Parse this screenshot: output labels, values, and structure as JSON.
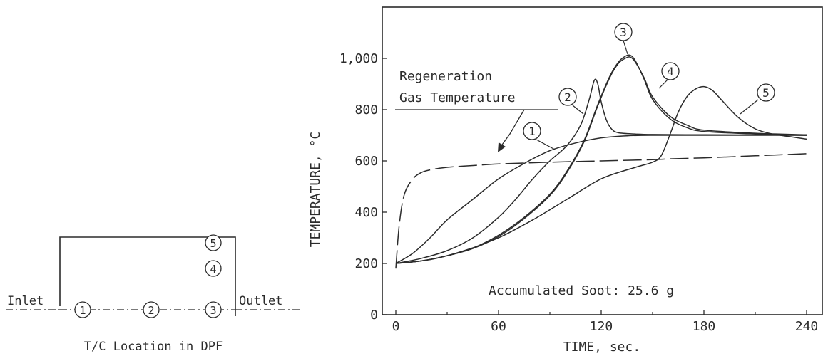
{
  "chart_data": {
    "type": "line",
    "xlabel": "TIME, sec.",
    "ylabel": "TEMPERATURE, °C",
    "xlim": [
      0,
      240
    ],
    "ylim": [
      0,
      1200
    ],
    "x_ticks": [
      0,
      60,
      120,
      180,
      240
    ],
    "x_tick_labels": [
      "0",
      "60",
      "120",
      "180",
      "240"
    ],
    "y_ticks": [
      0,
      200,
      400,
      600,
      800,
      1000
    ],
    "y_tick_labels": [
      "0",
      "200",
      "400",
      "600",
      "800",
      "1,000"
    ],
    "grid": false,
    "annotation_gas": [
      "Regeneration",
      "Gas Temperature"
    ],
    "annotation_soot": "Accumulated Soot:  25.6 g",
    "series": [
      {
        "name": "Regeneration Gas Temperature",
        "style": "dashed",
        "x": [
          0,
          2,
          5,
          10,
          15,
          20,
          30,
          45,
          60,
          90,
          120,
          150,
          160,
          180,
          210,
          240
        ],
        "y": [
          180,
          350,
          470,
          530,
          555,
          565,
          575,
          582,
          588,
          595,
          600,
          605,
          608,
          612,
          620,
          628
        ]
      },
      {
        "name": "1",
        "style": "solid",
        "x": [
          0,
          10,
          20,
          30,
          45,
          60,
          75,
          90,
          105,
          120,
          135,
          150,
          180,
          210,
          240
        ],
        "y": [
          200,
          240,
          300,
          370,
          450,
          530,
          590,
          640,
          670,
          690,
          698,
          700,
          700,
          700,
          700
        ]
      },
      {
        "name": "2",
        "style": "solid",
        "x": [
          0,
          15,
          30,
          45,
          60,
          70,
          80,
          90,
          100,
          108,
          113,
          116,
          118,
          120,
          123,
          126,
          130,
          140,
          150,
          180,
          210,
          240
        ],
        "y": [
          200,
          220,
          250,
          300,
          380,
          450,
          530,
          600,
          660,
          740,
          840,
          915,
          900,
          830,
          760,
          725,
          710,
          705,
          703,
          702,
          701,
          700
        ]
      },
      {
        "name": "3",
        "style": "solid",
        "x": [
          0,
          15,
          30,
          45,
          60,
          75,
          90,
          100,
          110,
          118,
          125,
          130,
          134,
          137,
          140,
          145,
          150,
          160,
          170,
          180,
          210,
          240
        ],
        "y": [
          200,
          210,
          230,
          260,
          310,
          380,
          470,
          560,
          680,
          820,
          930,
          985,
          1008,
          1012,
          990,
          920,
          840,
          765,
          730,
          715,
          705,
          700
        ]
      },
      {
        "name": "4",
        "style": "solid",
        "x": [
          0,
          15,
          30,
          45,
          60,
          75,
          90,
          100,
          110,
          118,
          125,
          130,
          134,
          137,
          140,
          145,
          150,
          160,
          170,
          180,
          210,
          240
        ],
        "y": [
          200,
          210,
          230,
          258,
          305,
          375,
          465,
          555,
          675,
          815,
          925,
          980,
          1000,
          1005,
          985,
          925,
          850,
          775,
          740,
          720,
          708,
          702
        ]
      },
      {
        "name": "5",
        "style": "solid",
        "x": [
          0,
          20,
          40,
          60,
          80,
          100,
          120,
          140,
          150,
          155,
          160,
          165,
          170,
          175,
          180,
          185,
          190,
          200,
          210,
          220,
          230,
          240
        ],
        "y": [
          200,
          215,
          250,
          300,
          370,
          450,
          530,
          575,
          595,
          620,
          700,
          790,
          850,
          880,
          890,
          875,
          840,
          770,
          725,
          705,
          695,
          685
        ]
      }
    ],
    "curve_labels": [
      "1",
      "2",
      "3",
      "4",
      "5"
    ]
  },
  "inset": {
    "title": "T/C Location in DPF",
    "inlet_label": "Inlet",
    "outlet_label": "Outlet",
    "markers": [
      "1",
      "2",
      "3",
      "4",
      "5"
    ]
  }
}
